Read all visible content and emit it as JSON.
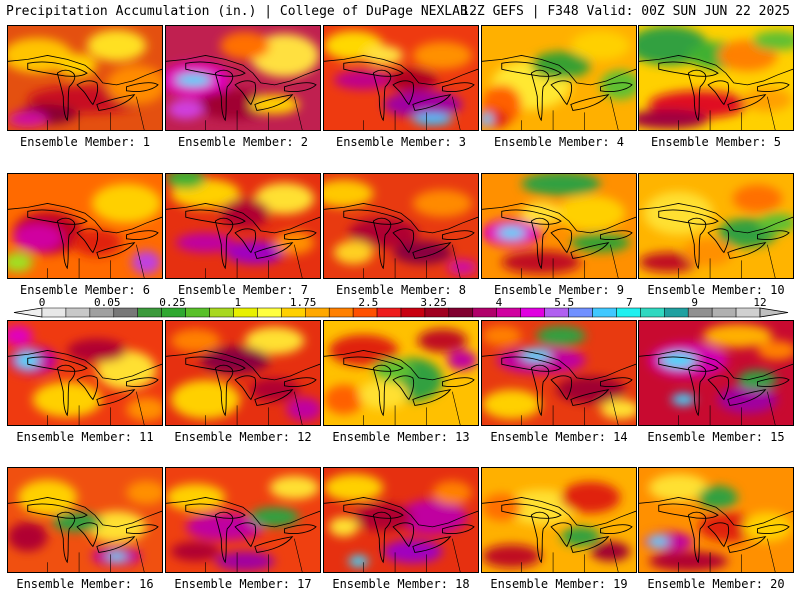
{
  "header": {
    "left": "Precipitation Accumulation (in.) | College of DuPage NEXLAB",
    "right": "12Z GEFS | F348 Valid: 00Z SUN JUN 22 2025"
  },
  "colorbar": {
    "tick_labels": [
      "0",
      "0.05",
      "0.25",
      "1",
      "1.75",
      "2.5",
      "3.25",
      "4",
      "5.5",
      "7",
      "9",
      "12"
    ],
    "colors": [
      "#e8e8e8",
      "#c8c8c8",
      "#a0a0a0",
      "#787878",
      "#3c9a3c",
      "#2fa830",
      "#59c02a",
      "#a8d820",
      "#e8f000",
      "#ffff40",
      "#ffd000",
      "#ffa800",
      "#ff8000",
      "#ff5000",
      "#ee1c1c",
      "#c80010",
      "#a00020",
      "#800030",
      "#b0006a",
      "#d000a0",
      "#e000e0",
      "#b060f0",
      "#7090ff",
      "#40c8ff",
      "#20f0f0",
      "#30d8c0",
      "#20a0a0",
      "#909090",
      "#b0b0b0",
      "#d0d0d0"
    ]
  },
  "panels": [
    {
      "label": "Ensemble Member: 1",
      "base": "#e45010",
      "blobs": [
        [
          "#ffc400",
          30,
          30,
          35,
          18
        ],
        [
          "#ffe020",
          110,
          20,
          30,
          16
        ],
        [
          "#c81020",
          80,
          75,
          60,
          14
        ],
        [
          "#8a0030",
          40,
          90,
          30,
          10
        ],
        [
          "#ff8c00",
          130,
          60,
          30,
          20
        ],
        [
          "#d010a0",
          20,
          95,
          20,
          8
        ],
        [
          "#ffd000",
          70,
          40,
          20,
          12
        ]
      ]
    },
    {
      "label": "Ensemble Member: 2",
      "base": "#c02050",
      "blobs": [
        [
          "#e000c0",
          30,
          55,
          35,
          18
        ],
        [
          "#40d8ff",
          28,
          55,
          18,
          6
        ],
        [
          "#ffe040",
          120,
          30,
          35,
          22
        ],
        [
          "#ff7000",
          80,
          20,
          25,
          14
        ],
        [
          "#a00030",
          70,
          80,
          40,
          15
        ],
        [
          "#ffd000",
          110,
          80,
          25,
          10
        ],
        [
          "#d040e0",
          20,
          85,
          18,
          10
        ]
      ]
    },
    {
      "label": "Ensemble Member: 3",
      "base": "#ee3a10",
      "blobs": [
        [
          "#ffd800",
          30,
          20,
          30,
          15
        ],
        [
          "#c0008a",
          40,
          55,
          30,
          10
        ],
        [
          "#a000a0",
          100,
          80,
          40,
          14
        ],
        [
          "#40c0ff",
          110,
          95,
          20,
          6
        ],
        [
          "#ff9000",
          120,
          30,
          30,
          14
        ],
        [
          "#b00020",
          90,
          55,
          25,
          12
        ],
        [
          "#ffe040",
          60,
          30,
          20,
          10
        ]
      ]
    },
    {
      "label": "Ensemble Member: 4",
      "base": "#ffb000",
      "blobs": [
        [
          "#ffe830",
          50,
          60,
          40,
          25
        ],
        [
          "#38a030",
          80,
          40,
          30,
          14
        ],
        [
          "#ff6000",
          20,
          80,
          20,
          20
        ],
        [
          "#e02010",
          10,
          95,
          18,
          10
        ],
        [
          "#60c030",
          140,
          60,
          20,
          15
        ],
        [
          "#ffd000",
          120,
          20,
          30,
          15
        ],
        [
          "#40d8ff",
          5,
          95,
          6,
          6
        ]
      ]
    },
    {
      "label": "Ensemble Member: 5",
      "base": "#ffd000",
      "blobs": [
        [
          "#30a040",
          30,
          20,
          40,
          20
        ],
        [
          "#40b030",
          80,
          30,
          30,
          14
        ],
        [
          "#ff8000",
          110,
          30,
          30,
          16
        ],
        [
          "#e01020",
          60,
          80,
          50,
          14
        ],
        [
          "#a00040",
          30,
          95,
          40,
          10
        ],
        [
          "#ffa000",
          130,
          75,
          25,
          12
        ],
        [
          "#60c030",
          140,
          15,
          25,
          10
        ]
      ]
    },
    {
      "label": "Ensemble Member: 6",
      "base": "#ff6a00",
      "blobs": [
        [
          "#c00020",
          40,
          60,
          35,
          22
        ],
        [
          "#40d8ff",
          30,
          65,
          14,
          7
        ],
        [
          "#d000a0",
          30,
          65,
          25,
          14
        ],
        [
          "#ffd000",
          120,
          30,
          35,
          20
        ],
        [
          "#e02010",
          90,
          70,
          25,
          14
        ],
        [
          "#a0e020",
          10,
          90,
          15,
          10
        ],
        [
          "#c040e0",
          140,
          90,
          15,
          12
        ]
      ]
    },
    {
      "label": "Ensemble Member: 7",
      "base": "#e63010",
      "blobs": [
        [
          "#ffd000",
          40,
          20,
          35,
          15
        ],
        [
          "#40b030",
          20,
          5,
          20,
          10
        ],
        [
          "#c000a0",
          40,
          70,
          30,
          10
        ],
        [
          "#a000c0",
          90,
          80,
          30,
          12
        ],
        [
          "#ffe030",
          120,
          25,
          30,
          16
        ],
        [
          "#b00030",
          80,
          40,
          25,
          15
        ],
        [
          "#ff9000",
          130,
          70,
          20,
          12
        ]
      ]
    },
    {
      "label": "Ensemble Member: 8",
      "base": "#e83a10",
      "blobs": [
        [
          "#ffc800",
          20,
          20,
          30,
          14
        ],
        [
          "#b00030",
          60,
          60,
          35,
          15
        ],
        [
          "#ff8a00",
          120,
          30,
          30,
          14
        ],
        [
          "#8a0040",
          100,
          80,
          30,
          12
        ],
        [
          "#ffd020",
          30,
          80,
          20,
          12
        ],
        [
          "#d010a0",
          140,
          95,
          15,
          8
        ]
      ]
    },
    {
      "label": "Ensemble Member: 9",
      "base": "#ff9000",
      "blobs": [
        [
          "#30a040",
          80,
          10,
          40,
          12
        ],
        [
          "#e000c0",
          30,
          60,
          30,
          14
        ],
        [
          "#40d8ff",
          30,
          60,
          14,
          6
        ],
        [
          "#ffd000",
          110,
          40,
          35,
          18
        ],
        [
          "#38a030",
          120,
          70,
          30,
          10
        ],
        [
          "#c01020",
          60,
          90,
          40,
          12
        ],
        [
          "#ffe030",
          60,
          40,
          20,
          12
        ]
      ]
    },
    {
      "label": "Ensemble Member: 10",
      "base": "#ffb400",
      "blobs": [
        [
          "#ffe030",
          40,
          40,
          35,
          22
        ],
        [
          "#30a040",
          110,
          60,
          30,
          15
        ],
        [
          "#ff7000",
          120,
          25,
          25,
          14
        ],
        [
          "#c01020",
          30,
          90,
          30,
          10
        ],
        [
          "#60c030",
          140,
          50,
          20,
          10
        ],
        [
          "#ff9000",
          70,
          80,
          25,
          14
        ]
      ]
    },
    {
      "label": "Ensemble Member: 11",
      "base": "#ef3a10",
      "blobs": [
        [
          "#c000a0",
          25,
          40,
          25,
          15
        ],
        [
          "#40d8ff",
          20,
          40,
          12,
          8
        ],
        [
          "#ffd000",
          60,
          80,
          35,
          18
        ],
        [
          "#ffe030",
          120,
          50,
          30,
          20
        ],
        [
          "#b00030",
          90,
          30,
          30,
          12
        ],
        [
          "#e000c0",
          10,
          15,
          15,
          10
        ],
        [
          "#ff9000",
          140,
          90,
          20,
          12
        ]
      ]
    },
    {
      "label": "Ensemble Member: 12",
      "base": "#e63010",
      "blobs": [
        [
          "#ffd000",
          40,
          80,
          35,
          20
        ],
        [
          "#ffe030",
          110,
          20,
          30,
          14
        ],
        [
          "#8a0040",
          70,
          40,
          35,
          14
        ],
        [
          "#c000a0",
          140,
          90,
          18,
          12
        ],
        [
          "#ff8000",
          30,
          20,
          25,
          12
        ],
        [
          "#b00030",
          110,
          70,
          25,
          12
        ]
      ]
    },
    {
      "label": "Ensemble Member: 13",
      "base": "#ffc000",
      "blobs": [
        [
          "#30a040",
          90,
          60,
          30,
          22
        ],
        [
          "#e02010",
          40,
          30,
          35,
          16
        ],
        [
          "#c01020",
          120,
          20,
          25,
          12
        ],
        [
          "#ff6000",
          20,
          80,
          20,
          15
        ],
        [
          "#ffe030",
          60,
          75,
          25,
          15
        ],
        [
          "#c000a0",
          140,
          40,
          15,
          10
        ],
        [
          "#60c030",
          70,
          50,
          20,
          12
        ]
      ]
    },
    {
      "label": "Ensemble Member: 14",
      "base": "#e83a10",
      "blobs": [
        [
          "#c000a0",
          60,
          40,
          45,
          14
        ],
        [
          "#40d8ff",
          55,
          35,
          15,
          6
        ],
        [
          "#30a040",
          80,
          15,
          25,
          10
        ],
        [
          "#ffd000",
          30,
          85,
          30,
          15
        ],
        [
          "#a00030",
          110,
          70,
          35,
          14
        ],
        [
          "#ff8000",
          20,
          15,
          20,
          10
        ],
        [
          "#ffe030",
          140,
          90,
          20,
          10
        ]
      ]
    },
    {
      "label": "Ensemble Member: 15",
      "base": "#c80a30",
      "blobs": [
        [
          "#d000b0",
          50,
          40,
          40,
          18
        ],
        [
          "#40d8ff",
          40,
          40,
          18,
          8
        ],
        [
          "#40d8ff",
          45,
          80,
          12,
          6
        ],
        [
          "#ffb000",
          100,
          15,
          35,
          12
        ],
        [
          "#a000a0",
          110,
          80,
          30,
          14
        ],
        [
          "#30a040",
          120,
          60,
          20,
          10
        ],
        [
          "#ff8000",
          140,
          30,
          20,
          10
        ]
      ]
    },
    {
      "label": "Ensemble Member: 16",
      "base": "#f05010",
      "blobs": [
        [
          "#ffd000",
          40,
          30,
          30,
          18
        ],
        [
          "#ffe030",
          110,
          60,
          30,
          16
        ],
        [
          "#c000a0",
          110,
          90,
          25,
          10
        ],
        [
          "#40d8ff",
          110,
          90,
          10,
          4
        ],
        [
          "#30a040",
          70,
          55,
          25,
          10
        ],
        [
          "#b00030",
          20,
          70,
          20,
          15
        ],
        [
          "#ff9000",
          140,
          25,
          20,
          12
        ]
      ]
    },
    {
      "label": "Ensemble Member: 17",
      "base": "#ef4010",
      "blobs": [
        [
          "#c000a0",
          60,
          60,
          40,
          14
        ],
        [
          "#40d8ff",
          70,
          95,
          18,
          6
        ],
        [
          "#a000a0",
          80,
          95,
          30,
          10
        ],
        [
          "#ffd000",
          30,
          30,
          30,
          14
        ],
        [
          "#30a040",
          110,
          50,
          25,
          10
        ],
        [
          "#ffe030",
          130,
          20,
          25,
          12
        ],
        [
          "#b00030",
          30,
          85,
          25,
          10
        ]
      ]
    },
    {
      "label": "Ensemble Member: 18",
      "base": "#e63010",
      "blobs": [
        [
          "#c000a0",
          110,
          50,
          35,
          18
        ],
        [
          "#a000c0",
          90,
          85,
          30,
          12
        ],
        [
          "#40d8ff",
          35,
          95,
          10,
          6
        ],
        [
          "#ffd000",
          30,
          20,
          30,
          14
        ],
        [
          "#b00030",
          60,
          50,
          30,
          14
        ],
        [
          "#ff8000",
          130,
          25,
          20,
          12
        ],
        [
          "#ffe030",
          20,
          60,
          15,
          10
        ]
      ]
    },
    {
      "label": "Ensemble Member: 19",
      "base": "#ffb000",
      "blobs": [
        [
          "#ffe030",
          60,
          40,
          35,
          18
        ],
        [
          "#e02010",
          110,
          30,
          30,
          16
        ],
        [
          "#c01020",
          30,
          90,
          30,
          12
        ],
        [
          "#30a040",
          100,
          70,
          20,
          10
        ],
        [
          "#ff7000",
          20,
          40,
          20,
          14
        ],
        [
          "#a00030",
          130,
          85,
          20,
          10
        ]
      ]
    },
    {
      "label": "Ensemble Member: 20",
      "base": "#ff9000",
      "blobs": [
        [
          "#ffe030",
          40,
          20,
          30,
          14
        ],
        [
          "#30a040",
          80,
          30,
          20,
          12
        ],
        [
          "#e02010",
          90,
          60,
          30,
          15
        ],
        [
          "#b00030",
          50,
          95,
          40,
          10
        ],
        [
          "#c000a0",
          30,
          75,
          25,
          10
        ],
        [
          "#40d8ff",
          20,
          75,
          10,
          5
        ],
        [
          "#ffd000",
          130,
          60,
          25,
          15
        ]
      ]
    }
  ]
}
